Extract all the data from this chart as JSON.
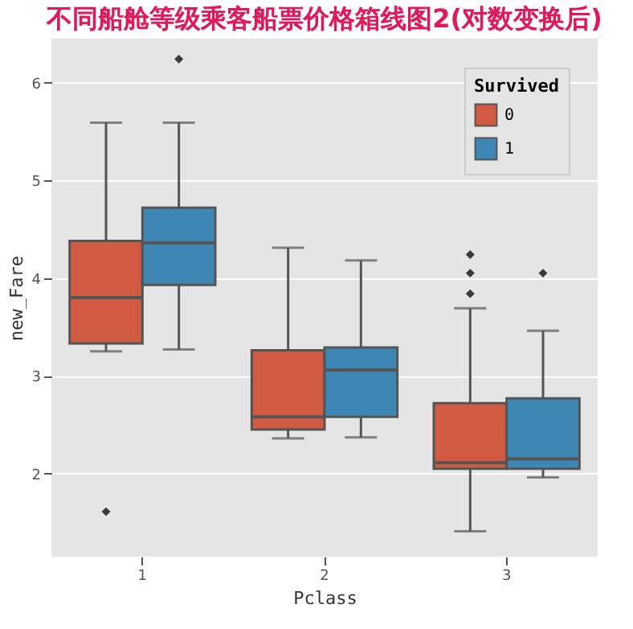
{
  "chart_data": {
    "type": "box",
    "title": "不同船舱等级乘客船票价格箱线图2(对数变换后)",
    "xlabel": "Pclass",
    "ylabel": "new_Fare",
    "legend_title": "Survived",
    "categories": [
      "1",
      "2",
      "3"
    ],
    "series": [
      {
        "name": "0",
        "color": "#d05a42",
        "boxes": [
          {
            "low": 3.25,
            "q1": 3.33,
            "median": 3.8,
            "q3": 4.38,
            "high": 5.59,
            "outliers": [
              1.61
            ]
          },
          {
            "low": 2.36,
            "q1": 2.45,
            "median": 2.58,
            "q3": 3.26,
            "high": 4.31
          },
          {
            "low": 1.41,
            "q1": 2.05,
            "median": 2.11,
            "q3": 2.72,
            "high": 3.69,
            "outliers": [
              4.24,
              4.05,
              3.84
            ]
          }
        ]
      },
      {
        "name": "1",
        "color": "#3e87b5",
        "boxes": [
          {
            "low": 3.27,
            "q1": 3.93,
            "median": 4.36,
            "q3": 4.72,
            "high": 5.59,
            "outliers": [
              6.24
            ]
          },
          {
            "low": 2.37,
            "q1": 2.58,
            "median": 3.06,
            "q3": 3.29,
            "high": 4.18
          },
          {
            "low": 1.96,
            "q1": 2.05,
            "median": 2.15,
            "q3": 2.77,
            "high": 3.46,
            "outliers": [
              4.05
            ]
          }
        ]
      }
    ],
    "ylim": [
      1.15,
      6.45
    ],
    "yticks": [
      2,
      3,
      4,
      5,
      6
    ],
    "grid": "y",
    "legend": "top right",
    "marker": "diamond"
  }
}
